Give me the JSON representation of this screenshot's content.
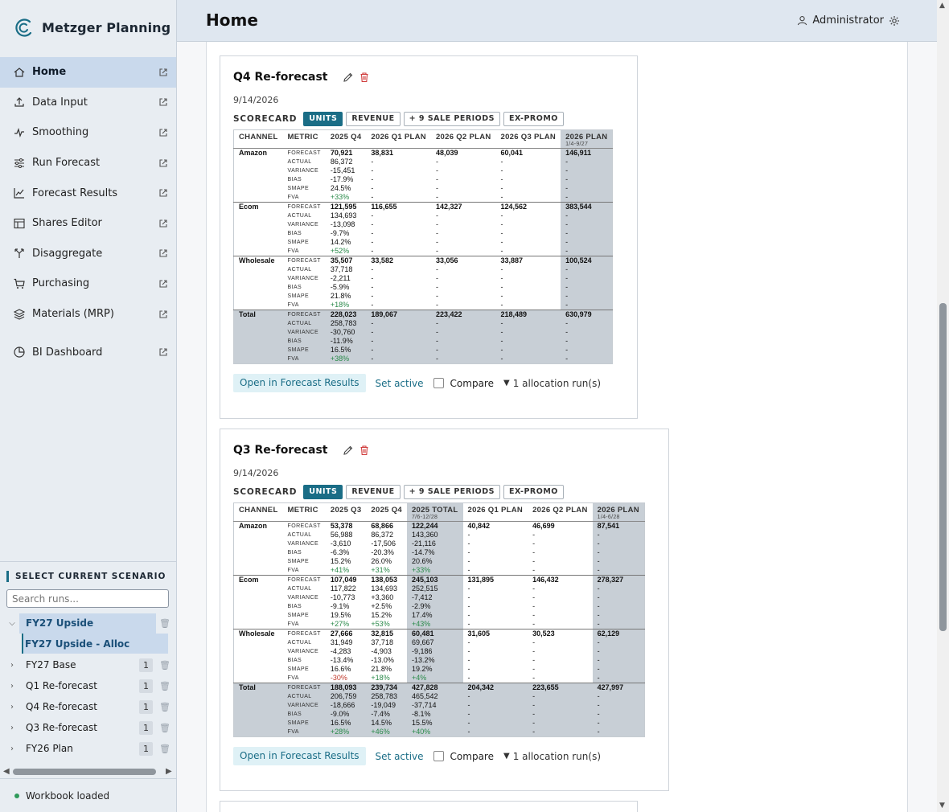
{
  "brand": {
    "name": "Metzger Planning"
  },
  "nav": [
    {
      "label": "Home",
      "active": true,
      "icon": "home-icon"
    },
    {
      "label": "Data Input",
      "icon": "upload-icon"
    },
    {
      "label": "Smoothing",
      "icon": "wave-icon"
    },
    {
      "label": "Run Forecast",
      "icon": "sliders-icon"
    },
    {
      "label": "Forecast Results",
      "icon": "line-chart-icon"
    },
    {
      "label": "Shares Editor",
      "icon": "table-icon"
    },
    {
      "label": "Disaggregate",
      "icon": "split-icon"
    },
    {
      "label": "Purchasing",
      "icon": "cart-icon"
    },
    {
      "label": "Materials (MRP)",
      "icon": "layers-icon"
    },
    {
      "label": "BI Dashboard",
      "icon": "pie-icon"
    }
  ],
  "scenario": {
    "title": "SELECT CURRENT SCENARIO",
    "search_placeholder": "Search runs...",
    "runs": [
      {
        "name": "FY27 Upside",
        "expanded": true,
        "selected": true
      },
      {
        "name": "FY27 Upside - Alloc",
        "child": true
      },
      {
        "name": "FY27 Base",
        "count": "1"
      },
      {
        "name": "Q1 Re-forecast",
        "count": "1"
      },
      {
        "name": "Q4 Re-forecast",
        "count": "1"
      },
      {
        "name": "Q3 Re-forecast",
        "count": "1"
      },
      {
        "name": "FY26 Plan",
        "count": "1"
      }
    ]
  },
  "status": {
    "text": "Workbook loaded",
    "color": "#2e9a5a"
  },
  "header": {
    "title": "Home",
    "user": "Administrator"
  },
  "colors": {
    "accent": "#1a6d86",
    "sidebar": "#e8edf2",
    "header": "#dfe7f0",
    "positive": "#2a8a4a",
    "negative": "#c0392b"
  },
  "cards": [
    {
      "title": "Q4 Re-forecast",
      "date": "9/14/2026",
      "scorecard_label": "SCORECARD",
      "pills": [
        "UNITS",
        "REVENUE",
        "+ 9 SALE PERIODS",
        "EX-PROMO"
      ],
      "columns": [
        {
          "label": "CHANNEL"
        },
        {
          "label": "METRIC"
        },
        {
          "label": "2025 Q4"
        },
        {
          "label": "2026 Q1 PLAN"
        },
        {
          "label": "2026 Q2 PLAN"
        },
        {
          "label": "2026 Q3 PLAN"
        },
        {
          "label": "2026 PLAN",
          "sub": "1/4-9/27",
          "hl": true
        }
      ],
      "groups": [
        {
          "channel": "Amazon",
          "rows": [
            [
              "FORECAST",
              "70,921",
              "38,831",
              "48,039",
              "60,041",
              "146,911"
            ],
            [
              "ACTUAL",
              "86,372",
              "-",
              "-",
              "-",
              "-"
            ],
            [
              "VARIANCE",
              "-15,451",
              "-",
              "-",
              "-",
              "-"
            ],
            [
              "BIAS",
              "-17.9%",
              "-",
              "-",
              "-",
              "-"
            ],
            [
              "SMAPE",
              "24.5%",
              "-",
              "-",
              "-",
              "-"
            ],
            [
              "FVA",
              "+33%",
              "-",
              "-",
              "-",
              "-"
            ]
          ]
        },
        {
          "channel": "Ecom",
          "rows": [
            [
              "FORECAST",
              "121,595",
              "116,655",
              "142,327",
              "124,562",
              "383,544"
            ],
            [
              "ACTUAL",
              "134,693",
              "-",
              "-",
              "-",
              "-"
            ],
            [
              "VARIANCE",
              "-13,098",
              "-",
              "-",
              "-",
              "-"
            ],
            [
              "BIAS",
              "-9.7%",
              "-",
              "-",
              "-",
              "-"
            ],
            [
              "SMAPE",
              "14.2%",
              "-",
              "-",
              "-",
              "-"
            ],
            [
              "FVA",
              "+52%",
              "-",
              "-",
              "-",
              "-"
            ]
          ]
        },
        {
          "channel": "Wholesale",
          "rows": [
            [
              "FORECAST",
              "35,507",
              "33,582",
              "33,056",
              "33,887",
              "100,524"
            ],
            [
              "ACTUAL",
              "37,718",
              "-",
              "-",
              "-",
              "-"
            ],
            [
              "VARIANCE",
              "-2,211",
              "-",
              "-",
              "-",
              "-"
            ],
            [
              "BIAS",
              "-5.9%",
              "-",
              "-",
              "-",
              "-"
            ],
            [
              "SMAPE",
              "21.8%",
              "-",
              "-",
              "-",
              "-"
            ],
            [
              "FVA",
              "+18%",
              "-",
              "-",
              "-",
              "-"
            ]
          ]
        },
        {
          "channel": "Total",
          "total": true,
          "rows": [
            [
              "FORECAST",
              "228,023",
              "189,067",
              "223,422",
              "218,489",
              "630,979"
            ],
            [
              "ACTUAL",
              "258,783",
              "-",
              "-",
              "-",
              "-"
            ],
            [
              "VARIANCE",
              "-30,760",
              "-",
              "-",
              "-",
              "-"
            ],
            [
              "BIAS",
              "-11.9%",
              "-",
              "-",
              "-",
              "-"
            ],
            [
              "SMAPE",
              "16.5%",
              "-",
              "-",
              "-",
              "-"
            ],
            [
              "FVA",
              "+38%",
              "-",
              "-",
              "-",
              "-"
            ]
          ]
        }
      ],
      "actions": {
        "open": "Open in Forecast Results",
        "set_active": "Set active",
        "compare": "Compare",
        "alloc": "1 allocation run(s)"
      }
    },
    {
      "title": "Q3 Re-forecast",
      "date": "9/14/2026",
      "scorecard_label": "SCORECARD",
      "pills": [
        "UNITS",
        "REVENUE",
        "+ 9 SALE PERIODS",
        "EX-PROMO"
      ],
      "columns": [
        {
          "label": "CHANNEL"
        },
        {
          "label": "METRIC"
        },
        {
          "label": "2025 Q3"
        },
        {
          "label": "2025 Q4"
        },
        {
          "label": "2025 TOTAL",
          "sub": "7/6-12/28",
          "hl": true
        },
        {
          "label": "2026 Q1 PLAN"
        },
        {
          "label": "2026 Q2 PLAN"
        },
        {
          "label": "2026 PLAN",
          "sub": "1/4-6/28",
          "hl": true
        }
      ],
      "groups": [
        {
          "channel": "Amazon",
          "rows": [
            [
              "FORECAST",
              "53,378",
              "68,866",
              "122,244",
              "40,842",
              "46,699",
              "87,541"
            ],
            [
              "ACTUAL",
              "56,988",
              "86,372",
              "143,360",
              "-",
              "-",
              "-"
            ],
            [
              "VARIANCE",
              "-3,610",
              "-17,506",
              "-21,116",
              "-",
              "-",
              "-"
            ],
            [
              "BIAS",
              "-6.3%",
              "-20.3%",
              "-14.7%",
              "-",
              "-",
              "-"
            ],
            [
              "SMAPE",
              "15.2%",
              "26.0%",
              "20.6%",
              "-",
              "-",
              "-"
            ],
            [
              "FVA",
              "+41%",
              "+31%",
              "+33%",
              "-",
              "-",
              "-"
            ]
          ]
        },
        {
          "channel": "Ecom",
          "rows": [
            [
              "FORECAST",
              "107,049",
              "138,053",
              "245,103",
              "131,895",
              "146,432",
              "278,327"
            ],
            [
              "ACTUAL",
              "117,822",
              "134,693",
              "252,515",
              "-",
              "-",
              "-"
            ],
            [
              "VARIANCE",
              "-10,773",
              "+3,360",
              "-7,412",
              "-",
              "-",
              "-"
            ],
            [
              "BIAS",
              "-9.1%",
              "+2.5%",
              "-2.9%",
              "-",
              "-",
              "-"
            ],
            [
              "SMAPE",
              "19.5%",
              "15.2%",
              "17.4%",
              "-",
              "-",
              "-"
            ],
            [
              "FVA",
              "+27%",
              "+53%",
              "+43%",
              "-",
              "-",
              "-"
            ]
          ]
        },
        {
          "channel": "Wholesale",
          "rows": [
            [
              "FORECAST",
              "27,666",
              "32,815",
              "60,481",
              "31,605",
              "30,523",
              "62,129"
            ],
            [
              "ACTUAL",
              "31,949",
              "37,718",
              "69,667",
              "-",
              "-",
              "-"
            ],
            [
              "VARIANCE",
              "-4,283",
              "-4,903",
              "-9,186",
              "-",
              "-",
              "-"
            ],
            [
              "BIAS",
              "-13.4%",
              "-13.0%",
              "-13.2%",
              "-",
              "-",
              "-"
            ],
            [
              "SMAPE",
              "16.6%",
              "21.8%",
              "19.2%",
              "-",
              "-",
              "-"
            ],
            [
              "FVA",
              "-30%",
              "+18%",
              "+4%",
              "-",
              "-",
              "-"
            ]
          ]
        },
        {
          "channel": "Total",
          "total": true,
          "rows": [
            [
              "FORECAST",
              "188,093",
              "239,734",
              "427,828",
              "204,342",
              "223,655",
              "427,997"
            ],
            [
              "ACTUAL",
              "206,759",
              "258,783",
              "465,542",
              "-",
              "-",
              "-"
            ],
            [
              "VARIANCE",
              "-18,666",
              "-19,049",
              "-37,714",
              "-",
              "-",
              "-"
            ],
            [
              "BIAS",
              "-9.0%",
              "-7.4%",
              "-8.1%",
              "-",
              "-",
              "-"
            ],
            [
              "SMAPE",
              "16.5%",
              "14.5%",
              "15.5%",
              "-",
              "-",
              "-"
            ],
            [
              "FVA",
              "+28%",
              "+46%",
              "+40%",
              "-",
              "-",
              "-"
            ]
          ]
        }
      ],
      "actions": {
        "open": "Open in Forecast Results",
        "set_active": "Set active",
        "compare": "Compare",
        "alloc": "1 allocation run(s)"
      }
    }
  ]
}
